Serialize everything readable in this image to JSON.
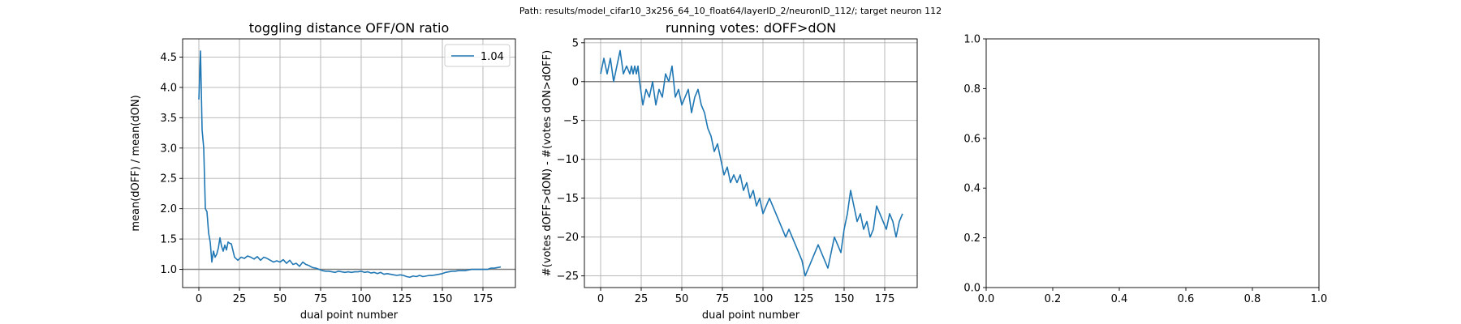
{
  "figure": {
    "suptitle": "Path: results/model_cifar10_3x256_64_10_float64/layerID_2/neuronID_112/; target neuron 112",
    "line_color": "#1f77b4",
    "ref_line_color": "#808080",
    "grid_color": "#b0b0b0"
  },
  "chart_data": [
    {
      "type": "line",
      "title": "toggling distance OFF/ON ratio",
      "xlabel": "dual point number",
      "ylabel": "mean(dOFF) / mean(dON)",
      "xlim": [
        -10,
        195
      ],
      "ylim": [
        0.7,
        4.8
      ],
      "xticks": [
        0,
        25,
        50,
        75,
        100,
        125,
        150,
        175
      ],
      "yticks": [
        1.0,
        1.5,
        2.0,
        2.5,
        3.0,
        3.5,
        4.0,
        4.5
      ],
      "ytick_labels": [
        "1.0",
        "1.5",
        "2.0",
        "2.5",
        "3.0",
        "3.5",
        "4.0",
        "4.5"
      ],
      "grid": true,
      "hline": 1.0,
      "legend": {
        "entries": [
          "1.04"
        ],
        "placement": "upper right"
      },
      "series": [
        {
          "name": "1.04",
          "x": [
            0,
            1,
            2,
            3,
            4,
            5,
            6,
            7,
            8,
            9,
            10,
            11,
            12,
            13,
            14,
            15,
            16,
            17,
            18,
            19,
            20,
            22,
            24,
            26,
            28,
            30,
            32,
            34,
            36,
            38,
            40,
            42,
            44,
            46,
            48,
            50,
            52,
            54,
            56,
            58,
            60,
            62,
            64,
            66,
            68,
            70,
            72,
            74,
            76,
            78,
            80,
            82,
            84,
            86,
            88,
            90,
            92,
            94,
            96,
            98,
            100,
            102,
            104,
            106,
            108,
            110,
            112,
            114,
            116,
            118,
            120,
            122,
            124,
            126,
            128,
            130,
            132,
            134,
            136,
            138,
            140,
            142,
            144,
            146,
            148,
            150,
            152,
            154,
            156,
            158,
            160,
            162,
            164,
            166,
            168,
            170,
            172,
            174,
            176,
            178,
            180,
            182,
            184,
            186
          ],
          "values": [
            3.8,
            4.6,
            3.3,
            3.0,
            2.0,
            1.95,
            1.6,
            1.45,
            1.12,
            1.3,
            1.2,
            1.25,
            1.35,
            1.52,
            1.38,
            1.3,
            1.4,
            1.32,
            1.45,
            1.43,
            1.42,
            1.2,
            1.15,
            1.2,
            1.18,
            1.22,
            1.2,
            1.17,
            1.21,
            1.15,
            1.2,
            1.18,
            1.15,
            1.12,
            1.14,
            1.12,
            1.16,
            1.1,
            1.15,
            1.08,
            1.1,
            1.05,
            1.12,
            1.08,
            1.06,
            1.03,
            1.02,
            1.0,
            0.98,
            0.97,
            0.97,
            0.96,
            0.95,
            0.97,
            0.96,
            0.95,
            0.96,
            0.95,
            0.96,
            0.96,
            0.97,
            0.95,
            0.96,
            0.94,
            0.95,
            0.93,
            0.95,
            0.92,
            0.93,
            0.92,
            0.91,
            0.9,
            0.91,
            0.9,
            0.88,
            0.87,
            0.89,
            0.88,
            0.9,
            0.88,
            0.89,
            0.9,
            0.9,
            0.91,
            0.92,
            0.93,
            0.95,
            0.96,
            0.97,
            0.97,
            0.98,
            0.98,
            0.98,
            0.99,
            1.0,
            1.0,
            1.0,
            1.0,
            1.0,
            1.0,
            1.02,
            1.02,
            1.03,
            1.04
          ]
        }
      ]
    },
    {
      "type": "line",
      "title": "running votes: dOFF>dON",
      "xlabel": "dual point number",
      "ylabel": "#(votes dOFF>dON) - #(votes dON>dOFF)",
      "xlim": [
        -10,
        195
      ],
      "ylim": [
        -26.5,
        5.5
      ],
      "xticks": [
        0,
        25,
        50,
        75,
        100,
        125,
        150,
        175
      ],
      "yticks": [
        5,
        0,
        -5,
        -10,
        -15,
        -20,
        -25
      ],
      "ytick_labels": [
        "5",
        "0",
        "−5",
        "−10",
        "−15",
        "−20",
        "−25"
      ],
      "grid": true,
      "hline": 0,
      "series": [
        {
          "x": [
            0,
            2,
            4,
            6,
            8,
            10,
            12,
            14,
            16,
            18,
            19,
            20,
            21,
            22,
            23,
            24,
            26,
            28,
            30,
            32,
            34,
            36,
            38,
            40,
            42,
            44,
            46,
            48,
            50,
            52,
            54,
            56,
            58,
            60,
            62,
            64,
            66,
            68,
            70,
            72,
            74,
            76,
            78,
            80,
            82,
            84,
            86,
            88,
            90,
            92,
            94,
            96,
            98,
            100,
            102,
            104,
            106,
            108,
            110,
            112,
            114,
            116,
            118,
            120,
            122,
            124,
            126,
            128,
            130,
            132,
            134,
            136,
            138,
            140,
            142,
            144,
            146,
            148,
            150,
            152,
            154,
            156,
            158,
            160,
            162,
            164,
            166,
            168,
            170,
            172,
            174,
            176,
            178,
            180,
            182,
            184,
            186
          ],
          "values": [
            1,
            3,
            1,
            3,
            0,
            2,
            4,
            1,
            2,
            1,
            2,
            1,
            2,
            1,
            2,
            0,
            -3,
            -1,
            -2,
            0,
            -3,
            -1,
            -2,
            1,
            0,
            2,
            -2,
            -1,
            -3,
            -2,
            -1,
            -4,
            -2,
            -1,
            -3,
            -4,
            -6,
            -7,
            -9,
            -8,
            -10,
            -12,
            -11,
            -13,
            -12,
            -13,
            -12,
            -14,
            -13,
            -15,
            -14,
            -16,
            -15,
            -17,
            -16,
            -15,
            -16,
            -17,
            -18,
            -19,
            -20,
            -19,
            -20,
            -21,
            -22,
            -23,
            -25,
            -24,
            -23,
            -22,
            -21,
            -22,
            -23,
            -24,
            -22,
            -20,
            -21,
            -22,
            -19,
            -17,
            -14,
            -16,
            -18,
            -17,
            -19,
            -18,
            -20,
            -19,
            -16,
            -17,
            -18,
            -19,
            -17,
            -18,
            -20,
            -18,
            -17
          ]
        }
      ]
    },
    {
      "type": "line",
      "title": "",
      "xlabel": "",
      "ylabel": "",
      "xlim": [
        0.0,
        1.0
      ],
      "ylim": [
        0.0,
        1.0
      ],
      "xticks": [
        0.0,
        0.2,
        0.4,
        0.6,
        0.8,
        1.0
      ],
      "yticks": [
        0.0,
        0.2,
        0.4,
        0.6,
        0.8,
        1.0
      ],
      "xtick_labels": [
        "0.0",
        "0.2",
        "0.4",
        "0.6",
        "0.8",
        "1.0"
      ],
      "ytick_labels": [
        "0.0",
        "0.2",
        "0.4",
        "0.6",
        "0.8",
        "1.0"
      ],
      "grid": false,
      "series": []
    }
  ]
}
